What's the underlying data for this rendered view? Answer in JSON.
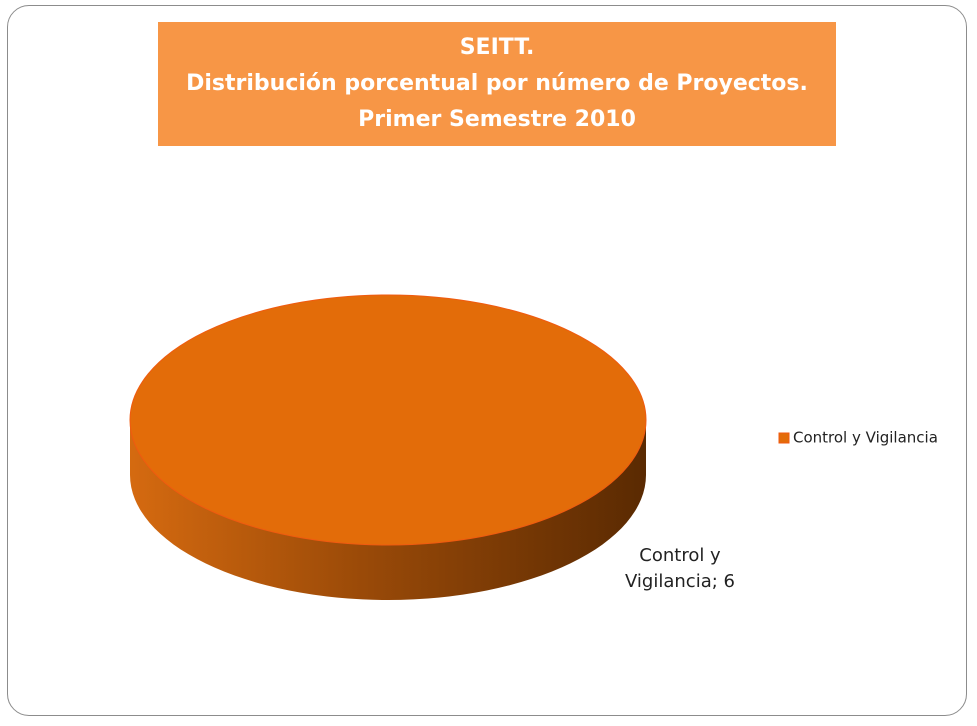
{
  "chart_data": {
    "type": "pie",
    "title": "SEITT.\nDistribución porcentual por número de Proyectos.\nPrimer Semestre 2010",
    "categories": [
      "Control y Vigilancia"
    ],
    "values": [
      6
    ],
    "value_labels": [
      "Control y\nVigilancia; 6"
    ],
    "colors": [
      "#e36c09"
    ],
    "legend": "right"
  }
}
